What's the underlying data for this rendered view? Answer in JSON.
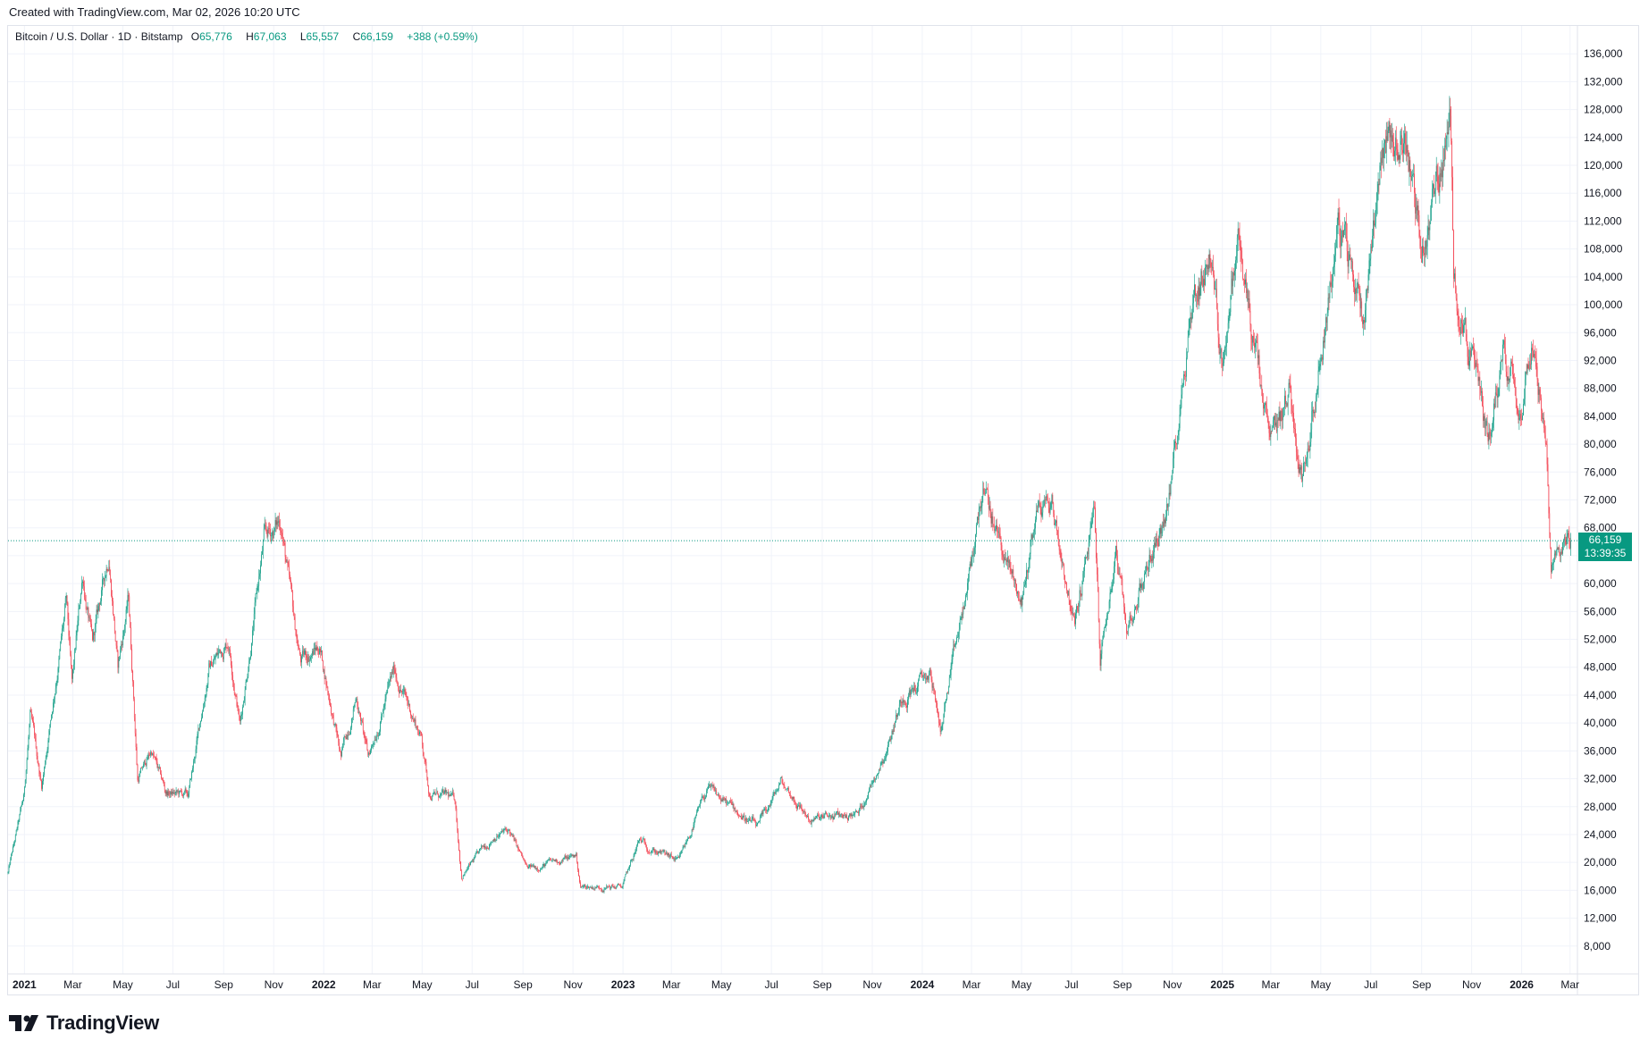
{
  "header": {
    "created": "Created with TradingView.com, Mar 02, 2026 10:20 UTC"
  },
  "legend": {
    "symbol": "Bitcoin / U.S. Dollar · 1D · Bitstamp",
    "o_label": "O",
    "o_value": "65,776",
    "h_label": "H",
    "h_value": "67,063",
    "l_label": "L",
    "l_value": "65,557",
    "c_label": "C",
    "c_value": "66,159",
    "change": "+388 (+0.59%)"
  },
  "last_price": {
    "value": "66,159",
    "countdown": "13:39:35"
  },
  "brand": {
    "name": "TradingView"
  },
  "colors": {
    "up": "#089981",
    "down": "#f23645",
    "grid": "#f0f3fa",
    "text": "#131722",
    "axis": "#e0e3eb"
  },
  "chart_data": {
    "type": "candlestick",
    "interval": "1D",
    "ylim": [
      4000,
      140000
    ],
    "xlim": [
      "2020-12-12",
      "2026-03-10"
    ],
    "y_ticks": [
      8000,
      12000,
      16000,
      20000,
      24000,
      28000,
      32000,
      36000,
      40000,
      44000,
      48000,
      52000,
      56000,
      60000,
      64000,
      68000,
      72000,
      76000,
      80000,
      84000,
      88000,
      92000,
      96000,
      100000,
      104000,
      108000,
      112000,
      116000,
      120000,
      124000,
      128000,
      132000,
      136000
    ],
    "y_tick_labels": [
      "8,000",
      "12,000",
      "16,000",
      "20,000",
      "24,000",
      "28,000",
      "32,000",
      "36,000",
      "40,000",
      "44,000",
      "48,000",
      "52,000",
      "56,000",
      "60,000",
      "64,000",
      "68,000",
      "72,000",
      "76,000",
      "80,000",
      "84,000",
      "88,000",
      "92,000",
      "96,000",
      "100,000",
      "104,000",
      "108,000",
      "112,000",
      "116,000",
      "120,000",
      "124,000",
      "128,000",
      "132,000",
      "136,000"
    ],
    "x_ticks": [
      {
        "date": "2021-01-01",
        "label": "2021",
        "bold": true
      },
      {
        "date": "2021-03-01",
        "label": "Mar"
      },
      {
        "date": "2021-05-01",
        "label": "May"
      },
      {
        "date": "2021-07-01",
        "label": "Jul"
      },
      {
        "date": "2021-09-01",
        "label": "Sep"
      },
      {
        "date": "2021-11-01",
        "label": "Nov"
      },
      {
        "date": "2022-01-01",
        "label": "2022",
        "bold": true
      },
      {
        "date": "2022-03-01",
        "label": "Mar"
      },
      {
        "date": "2022-05-01",
        "label": "May"
      },
      {
        "date": "2022-07-01",
        "label": "Jul"
      },
      {
        "date": "2022-09-01",
        "label": "Sep"
      },
      {
        "date": "2022-11-01",
        "label": "Nov"
      },
      {
        "date": "2023-01-01",
        "label": "2023",
        "bold": true
      },
      {
        "date": "2023-03-01",
        "label": "Mar"
      },
      {
        "date": "2023-05-01",
        "label": "May"
      },
      {
        "date": "2023-07-01",
        "label": "Jul"
      },
      {
        "date": "2023-09-01",
        "label": "Sep"
      },
      {
        "date": "2023-11-01",
        "label": "Nov"
      },
      {
        "date": "2024-01-01",
        "label": "2024",
        "bold": true
      },
      {
        "date": "2024-03-01",
        "label": "Mar"
      },
      {
        "date": "2024-05-01",
        "label": "May"
      },
      {
        "date": "2024-07-01",
        "label": "Jul"
      },
      {
        "date": "2024-09-01",
        "label": "Sep"
      },
      {
        "date": "2024-11-01",
        "label": "Nov"
      },
      {
        "date": "2025-01-01",
        "label": "2025",
        "bold": true
      },
      {
        "date": "2025-03-01",
        "label": "Mar"
      },
      {
        "date": "2025-05-01",
        "label": "May"
      },
      {
        "date": "2025-07-01",
        "label": "Jul"
      },
      {
        "date": "2025-09-01",
        "label": "Sep"
      },
      {
        "date": "2025-11-01",
        "label": "Nov"
      },
      {
        "date": "2026-01-01",
        "label": "2026",
        "bold": true
      },
      {
        "date": "2026-03-01",
        "label": "Mar"
      }
    ],
    "price_path": [
      [
        "2020-12-12",
        18500
      ],
      [
        "2020-12-31",
        29000
      ],
      [
        "2021-01-08",
        41000
      ],
      [
        "2021-01-22",
        31000
      ],
      [
        "2021-02-08",
        46000
      ],
      [
        "2021-02-21",
        57000
      ],
      [
        "2021-02-28",
        45000
      ],
      [
        "2021-03-13",
        61000
      ],
      [
        "2021-03-25",
        51000
      ],
      [
        "2021-04-14",
        64500
      ],
      [
        "2021-04-25",
        48000
      ],
      [
        "2021-05-08",
        58000
      ],
      [
        "2021-05-19",
        32000
      ],
      [
        "2021-06-05",
        36000
      ],
      [
        "2021-06-22",
        30000
      ],
      [
        "2021-07-20",
        29500
      ],
      [
        "2021-08-14",
        48000
      ],
      [
        "2021-09-07",
        52000
      ],
      [
        "2021-09-21",
        40000
      ],
      [
        "2021-10-20",
        66000
      ],
      [
        "2021-11-10",
        69000
      ],
      [
        "2021-11-26",
        54000
      ],
      [
        "2021-12-04",
        49000
      ],
      [
        "2021-12-27",
        51000
      ],
      [
        "2022-01-22",
        35000
      ],
      [
        "2022-02-10",
        44000
      ],
      [
        "2022-02-24",
        35000
      ],
      [
        "2022-03-28",
        47500
      ],
      [
        "2022-04-30",
        38000
      ],
      [
        "2022-05-10",
        30000
      ],
      [
        "2022-06-10",
        29000
      ],
      [
        "2022-06-18",
        18000
      ],
      [
        "2022-07-29",
        24000
      ],
      [
        "2022-08-15",
        24500
      ],
      [
        "2022-09-06",
        19000
      ],
      [
        "2022-11-05",
        21000
      ],
      [
        "2022-11-10",
        16500
      ],
      [
        "2022-12-31",
        16500
      ],
      [
        "2023-01-21",
        23000
      ],
      [
        "2023-03-10",
        20000
      ],
      [
        "2023-04-14",
        30500
      ],
      [
        "2023-06-15",
        25000
      ],
      [
        "2023-07-13",
        31500
      ],
      [
        "2023-08-18",
        26000
      ],
      [
        "2023-10-15",
        27000
      ],
      [
        "2023-11-20",
        37000
      ],
      [
        "2023-12-08",
        44000
      ],
      [
        "2024-01-11",
        47000
      ],
      [
        "2024-01-23",
        39000
      ],
      [
        "2024-02-28",
        61000
      ],
      [
        "2024-03-14",
        73500
      ],
      [
        "2024-05-01",
        57000
      ],
      [
        "2024-05-20",
        71000
      ],
      [
        "2024-06-07",
        71500
      ],
      [
        "2024-07-05",
        54000
      ],
      [
        "2024-07-29",
        70000
      ],
      [
        "2024-08-05",
        49000
      ],
      [
        "2024-08-24",
        64000
      ],
      [
        "2024-09-06",
        53000
      ],
      [
        "2024-10-29",
        72500
      ],
      [
        "2024-11-22",
        99000
      ],
      [
        "2024-12-17",
        108000
      ],
      [
        "2024-12-31",
        92000
      ],
      [
        "2025-01-20",
        109000
      ],
      [
        "2025-02-28",
        79000
      ],
      [
        "2025-03-24",
        88000
      ],
      [
        "2025-04-08",
        75000
      ],
      [
        "2025-05-22",
        111000
      ],
      [
        "2025-06-22",
        99000
      ],
      [
        "2025-07-14",
        123000
      ],
      [
        "2025-08-14",
        124000
      ],
      [
        "2025-09-01",
        107000
      ],
      [
        "2025-10-06",
        126000
      ],
      [
        "2025-10-10",
        105000
      ],
      [
        "2025-11-21",
        81000
      ],
      [
        "2025-12-10",
        94000
      ],
      [
        "2025-12-31",
        87000
      ],
      [
        "2026-01-14",
        97000
      ],
      [
        "2026-01-31",
        78000
      ],
      [
        "2026-02-06",
        60500
      ],
      [
        "2026-02-20",
        67000
      ],
      [
        "2026-03-02",
        66159
      ]
    ]
  }
}
